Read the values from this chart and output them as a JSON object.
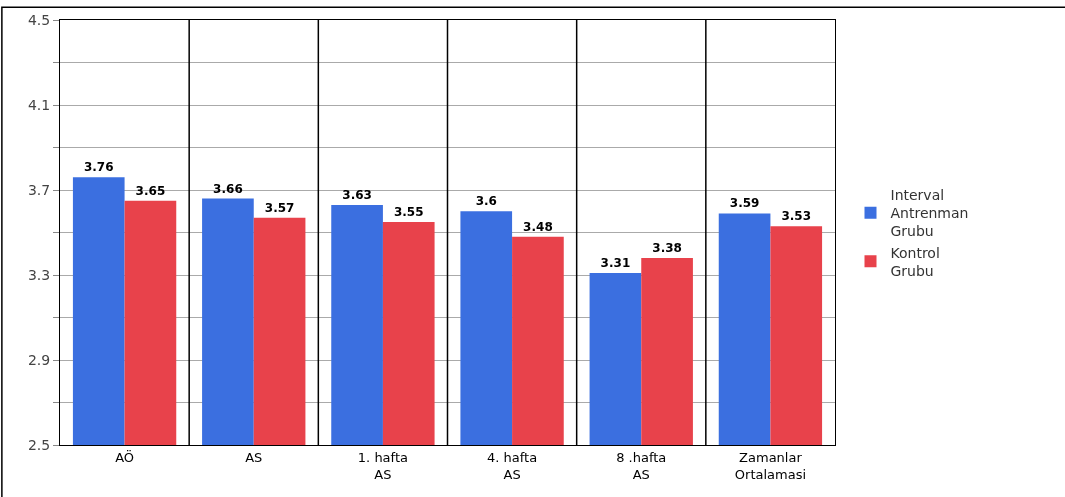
{
  "chart_data": {
    "type": "bar",
    "categories": [
      "AÖ",
      "AS",
      "1. hafta AS",
      "4. hafta AS",
      "8 .hafta AS",
      "Zamanlar Ortalamasi"
    ],
    "series": [
      {
        "name": "Interval Antrenman Grubu",
        "color": "#3b6fe0",
        "values": [
          3.76,
          3.66,
          3.63,
          3.6,
          3.31,
          3.59
        ]
      },
      {
        "name": "Kontrol Grubu",
        "color": "#e8424b",
        "values": [
          3.65,
          3.57,
          3.55,
          3.48,
          3.38,
          3.53
        ]
      }
    ],
    "ylim": [
      2.5,
      4.5
    ],
    "yticks": [
      2.5,
      {
        "value": 2.7,
        "label": null
      },
      2.9,
      {
        "value": 3.1,
        "label": null
      },
      3.3,
      {
        "value": 3.5,
        "label": null
      },
      3.7,
      {
        "value": 3.9,
        "label": null
      },
      4.1,
      {
        "value": 4.3,
        "label": null
      },
      4.5
    ],
    "data_labels": true,
    "grid": true,
    "legend": "right"
  }
}
